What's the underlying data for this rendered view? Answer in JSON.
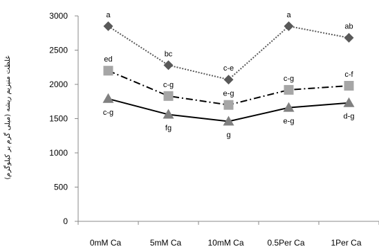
{
  "chart_data": {
    "type": "line",
    "ylabel": "غلظت منیزیم ریشه (میلی گرم بر کیلوگرم)",
    "xlabel": "",
    "ylim": [
      0,
      3000
    ],
    "yticks": [
      0,
      500,
      1000,
      1500,
      2000,
      2500,
      3000
    ],
    "categories": [
      "0mM Ca",
      "5mM Ca",
      "10mM Ca",
      "0.5Per Ca",
      "1Per Ca"
    ],
    "grid": false,
    "legend": "none",
    "series": [
      {
        "values": [
          2850,
          2280,
          2070,
          2850,
          2680
        ],
        "labels": [
          "a",
          "bc",
          "c-e",
          "a",
          "ab"
        ],
        "label_pos": "above",
        "marker": "diamond",
        "color": "#595959",
        "line_style": "dotted"
      },
      {
        "values": [
          2200,
          1830,
          1700,
          1920,
          1980
        ],
        "labels": [
          "ed",
          "c-g",
          "e-g",
          "c-g",
          "c-f"
        ],
        "label_pos": "above",
        "marker": "square",
        "color": "#a6a6a6",
        "line_color": "#000000",
        "line_style": "dashdot"
      },
      {
        "values": [
          1790,
          1560,
          1460,
          1660,
          1730
        ],
        "labels": [
          "c-g",
          "fg",
          "g",
          "e-g",
          "d-g"
        ],
        "label_pos": "below",
        "marker": "triangle",
        "color": "#808080",
        "line_color": "#000000",
        "line_style": "solid"
      }
    ]
  }
}
